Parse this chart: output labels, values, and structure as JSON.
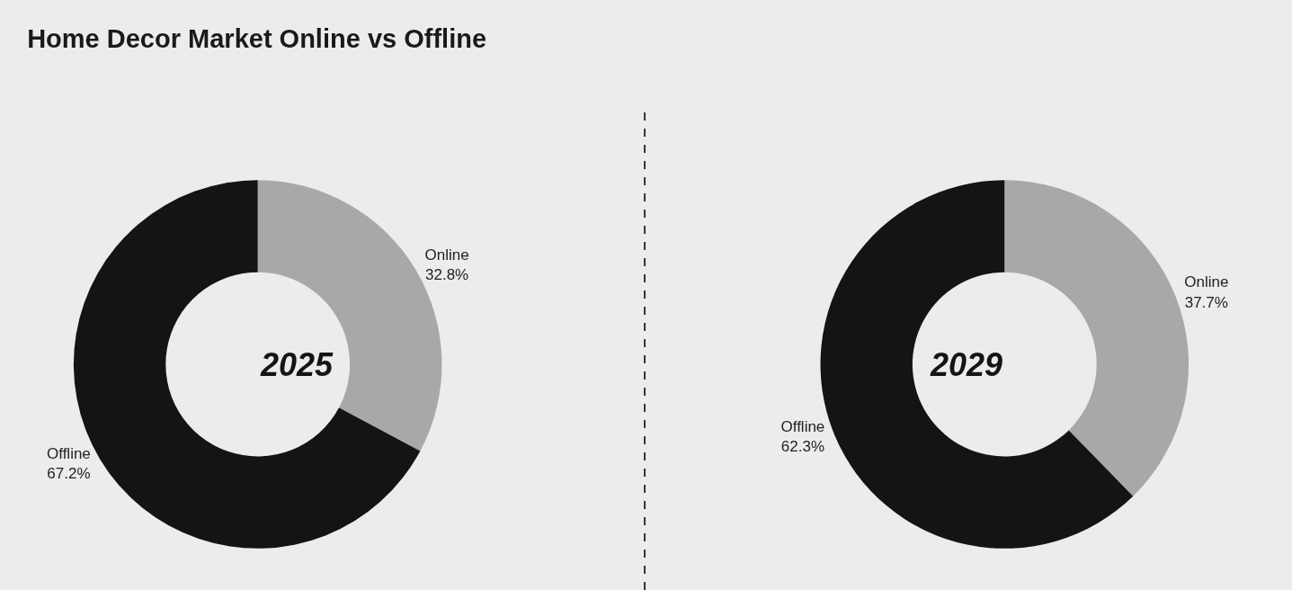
{
  "chart_data": [
    {
      "type": "donut",
      "title": "Home Decor Market Online vs Offline",
      "annotations": [
        "2025"
      ],
      "categories": [
        "Online",
        "Offline"
      ],
      "values": [
        32.8,
        67.2
      ],
      "value_labels": [
        "32.8%",
        "67.2%"
      ],
      "colors": [
        "#a8a8a8",
        "#141414"
      ]
    },
    {
      "type": "donut",
      "annotations": [
        "2029"
      ],
      "categories": [
        "Online",
        "Offline"
      ],
      "values": [
        37.7,
        62.3
      ],
      "value_labels": [
        "37.7%",
        "62.3%"
      ],
      "colors": [
        "#a8a8a8",
        "#141414"
      ]
    }
  ]
}
